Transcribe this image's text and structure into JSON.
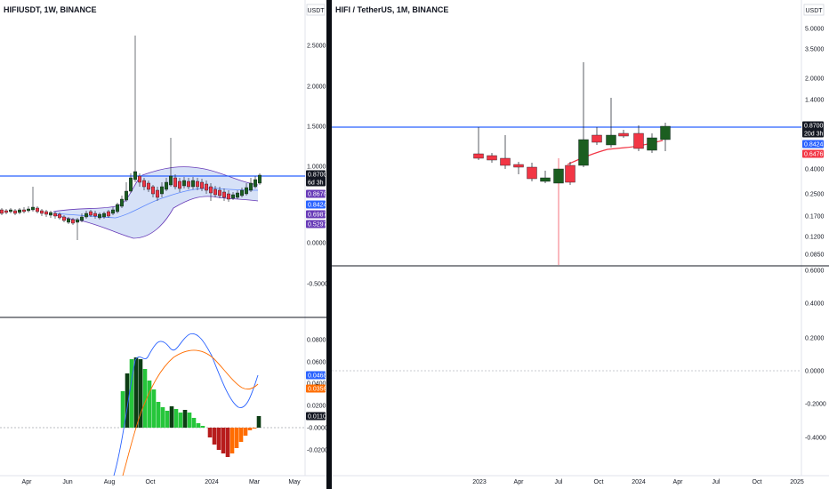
{
  "left": {
    "title": "HIFIUSDT, 1W, BINANCE",
    "currency": "USDT",
    "price_ticks": [
      "2.5000",
      "2.0000",
      "1.5000",
      "1.0000",
      "0.0000",
      "-0.5000"
    ],
    "badges": [
      {
        "value": "0.8700",
        "sub": "6d 3h",
        "color": "#131722"
      },
      {
        "value": "0.8678",
        "color": "#673ab7"
      },
      {
        "value": "0.8424",
        "color": "#2962ff"
      },
      {
        "value": "0.6987",
        "color": "#673ab7"
      },
      {
        "value": "0.5297",
        "color": "#673ab7"
      }
    ],
    "osc_ticks": [
      "0.0800",
      "0.0600",
      "0.0400",
      "0.0200",
      "-0.0000",
      "-0.0200"
    ],
    "osc_badges": [
      {
        "value": "0.0468",
        "color": "#2962ff"
      },
      {
        "value": "0.0356",
        "color": "#ff6d00"
      },
      {
        "value": "0.0110",
        "color": "#131722"
      }
    ],
    "time_ticks": [
      "Apr",
      "Jun",
      "Aug",
      "Oct",
      "2024",
      "Mar",
      "May"
    ]
  },
  "right": {
    "title": "HIFI / TetherUS, 1M, BINANCE",
    "currency": "USDT",
    "price_ticks": [
      "5.0000",
      "3.5000",
      "2.0000",
      "1.4000",
      "0.4000",
      "0.2500",
      "0.1700",
      "0.1200",
      "0.0850"
    ],
    "badges": [
      {
        "value": "0.8700",
        "sub": "20d 3h",
        "color": "#131722"
      },
      {
        "value": "0.8424",
        "color": "#2962ff"
      },
      {
        "value": "0.6476",
        "color": "#f23645"
      }
    ],
    "osc_ticks": [
      "0.6000",
      "0.4000",
      "0.2000",
      "0.0000",
      "-0.2000",
      "-0.4000"
    ],
    "time_ticks": [
      "2023",
      "Apr",
      "Jul",
      "Oct",
      "2024",
      "Apr",
      "Jul",
      "Oct",
      "2025"
    ]
  },
  "colors": {
    "up_green": "#1b5e20",
    "down_red": "#f23645",
    "hline_blue": "#2962ff",
    "bb_fill": "#c5d4f3",
    "bb_line": "#673ab7",
    "macd_blue": "#2962ff",
    "signal_orange": "#ff6d00",
    "hist_green": "#26c63b",
    "hist_dark": "#0d3d14",
    "hist_red": "#b71c1c",
    "hist_orange": "#ff6d00"
  }
}
